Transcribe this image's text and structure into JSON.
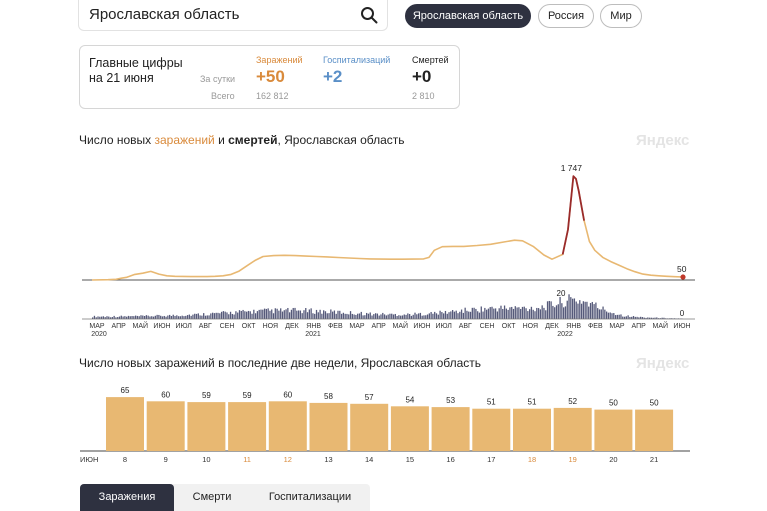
{
  "search": {
    "value": "Ярославская область"
  },
  "region_buttons": [
    "Ярославская область",
    "Россия",
    "Мир"
  ],
  "summary": {
    "title_line1": "Главные цифры",
    "title_line2": "на 21 июня",
    "row_daily": "За сутки",
    "row_total": "Всего",
    "infections": {
      "label": "Заражений",
      "daily": "+50",
      "total": "162 812",
      "color": "#d98a3b"
    },
    "hospitalizations": {
      "label": "Госпитализаций",
      "daily": "+2",
      "total": "",
      "color": "#5a8fc7"
    },
    "deaths": {
      "label": "Смертей",
      "daily": "+0",
      "total": "2 810",
      "color": "#222222"
    }
  },
  "chart1_title": {
    "prefix": "Число новых ",
    "highlight": "заражений",
    "mid": " и ",
    "bold": "смертей",
    "suffix": ", Ярославская область"
  },
  "watermark": "Яндекс",
  "chart2_title": "Число новых заражений в последние две недели, Ярославская область",
  "tabs": [
    "Заражения",
    "Смерти",
    "Госпитализации"
  ],
  "chart_data": [
    {
      "type": "area",
      "series": [
        {
          "name": "заражений",
          "color": "#e8b872",
          "points": [
            [
              0,
              0
            ],
            [
              6,
              5
            ],
            [
              9,
              12
            ],
            [
              11,
              30
            ],
            [
              13,
              45
            ],
            [
              16,
              95
            ],
            [
              19,
              115
            ],
            [
              22,
              145
            ],
            [
              25,
              100
            ],
            [
              28,
              70
            ],
            [
              31,
              62
            ],
            [
              34,
              60
            ],
            [
              37,
              58
            ],
            [
              40,
              57
            ],
            [
              43,
              58
            ],
            [
              46,
              62
            ],
            [
              49,
              70
            ],
            [
              52,
              95
            ],
            [
              55,
              150
            ],
            [
              58,
              240
            ],
            [
              61,
              330
            ],
            [
              64,
              395
            ],
            [
              68,
              410
            ],
            [
              72,
              415
            ],
            [
              76,
              410
            ],
            [
              80,
              402
            ],
            [
              84,
              395
            ],
            [
              88,
              388
            ],
            [
              92,
              378
            ],
            [
              96,
              370
            ],
            [
              100,
              362
            ],
            [
              104,
              355
            ],
            [
              108,
              352
            ],
            [
              112,
              350
            ],
            [
              116,
              350
            ],
            [
              120,
              352
            ],
            [
              124,
              355
            ],
            [
              126,
              380
            ],
            [
              128,
              500
            ],
            [
              131,
              560
            ],
            [
              135,
              565
            ],
            [
              139,
              565
            ],
            [
              144,
              580
            ],
            [
              149,
              600
            ],
            [
              154,
              640
            ],
            [
              158,
              670
            ],
            [
              161,
              660
            ],
            [
              165,
              565
            ],
            [
              169,
              420
            ],
            [
              172,
              350
            ],
            [
              176,
              430
            ],
            [
              178,
              850
            ],
            [
              179,
              1300
            ],
            [
              180,
              1747
            ],
            [
              181,
              1700
            ],
            [
              182,
              1500
            ],
            [
              184,
              1000
            ],
            [
              186,
              650
            ],
            [
              188,
              500
            ],
            [
              191,
              380
            ],
            [
              194,
              310
            ],
            [
              197,
              250
            ],
            [
              200,
              190
            ],
            [
              203,
              140
            ],
            [
              206,
              100
            ],
            [
              209,
              80
            ],
            [
              212,
              70
            ],
            [
              215,
              62
            ],
            [
              218,
              55
            ],
            [
              221,
              50
            ]
          ]
        },
        {
          "name": "смертей",
          "color": "#9a2b2b",
          "peak_range": [
            175,
            185
          ]
        }
      ],
      "x_ticks": [
        "МАР",
        "АПР",
        "МАЙ",
        "ИЮН",
        "ИЮЛ",
        "АВГ",
        "СЕН",
        "ОКТ",
        "НОЯ",
        "ДЕК",
        "ЯНВ",
        "ФЕВ",
        "МАР",
        "АПР",
        "МАЙ",
        "ИЮН",
        "ИЮЛ",
        "АВГ",
        "СЕН",
        "ОКТ",
        "НОЯ",
        "ДЕК",
        "ЯНВ",
        "ФЕВ",
        "МАР",
        "АПР",
        "МАЙ",
        "ИЮН"
      ],
      "year_labels": [
        "2020",
        "2021",
        "2022"
      ],
      "peak_label": "1 747",
      "last_label": "50",
      "deaths_peak_label": "20",
      "deaths_last_label": "0",
      "ylim": [
        0,
        1800
      ]
    },
    {
      "type": "bar",
      "categories": [
        "8",
        "9",
        "10",
        "11",
        "12",
        "13",
        "14",
        "15",
        "16",
        "17",
        "18",
        "19",
        "20",
        "21"
      ],
      "values": [
        65,
        60,
        59,
        59,
        60,
        58,
        57,
        54,
        53,
        51,
        51,
        52,
        50,
        50
      ],
      "weekend_indices": [
        3,
        4,
        10,
        11
      ],
      "month_label": "ИЮН",
      "color": "#e8b872",
      "weekend_label_color": "#d98a3b",
      "ylim": [
        0,
        70
      ]
    }
  ]
}
